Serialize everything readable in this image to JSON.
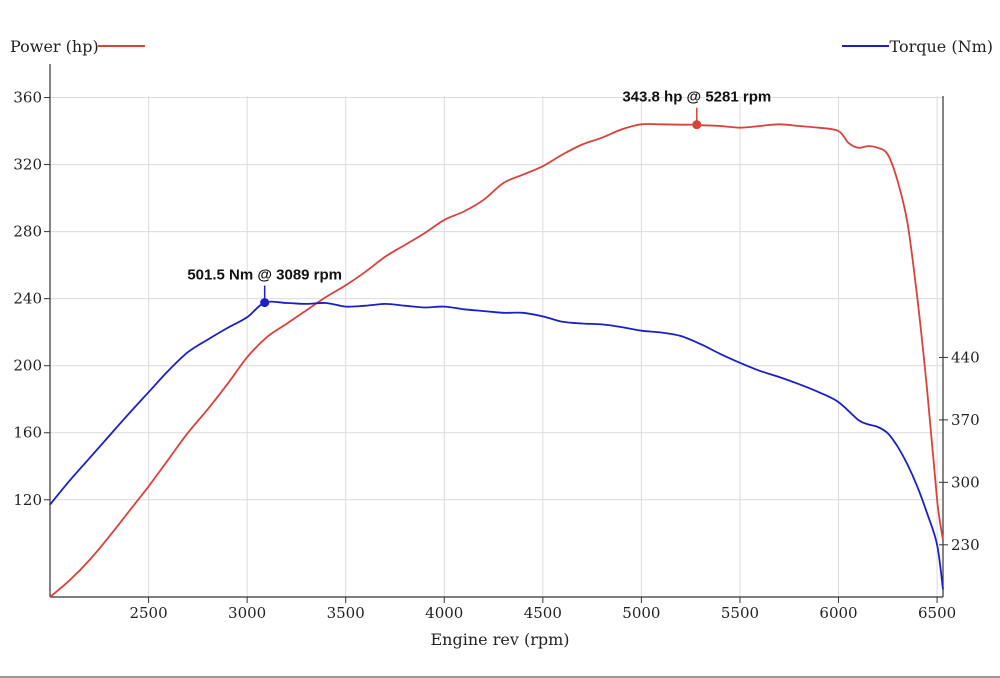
{
  "chart_data": {
    "type": "line",
    "title": "",
    "xlabel": "Engine rev (rpm)",
    "xlim": [
      2000,
      6530
    ],
    "x_ticks": [
      2500,
      3000,
      3500,
      4000,
      4500,
      5000,
      5500,
      6000,
      6500
    ],
    "grid": true,
    "legend": [
      {
        "name": "Power (hp)",
        "color": "#d9413a",
        "position": "top-left"
      },
      {
        "name": "Torque (Nm)",
        "color": "#1a1fc7",
        "position": "top-right"
      }
    ],
    "y_left": {
      "label": "Power (hp)",
      "ylim": [
        62,
        380
      ],
      "ticks": [
        120,
        160,
        200,
        240,
        280,
        320,
        360
      ]
    },
    "y_right": {
      "label": "Torque (Nm)",
      "ylim": [
        171.5,
        768.9
      ],
      "ticks": [
        230,
        300,
        370,
        440
      ]
    },
    "series": [
      {
        "name": "Power (hp)",
        "axis": "left",
        "color": "#d9413a",
        "x": [
          2000,
          2100,
          2200,
          2300,
          2400,
          2500,
          2600,
          2700,
          2800,
          2900,
          3000,
          3100,
          3200,
          3300,
          3400,
          3500,
          3600,
          3700,
          3800,
          3900,
          4000,
          4100,
          4200,
          4300,
          4400,
          4500,
          4600,
          4700,
          4800,
          4900,
          5000,
          5100,
          5200,
          5281,
          5300,
          5400,
          5500,
          5600,
          5700,
          5800,
          5900,
          6000,
          6050,
          6100,
          6150,
          6200,
          6250,
          6300,
          6350,
          6400,
          6450,
          6500,
          6530
        ],
        "values": [
          62,
          72,
          84,
          98,
          113,
          128,
          144,
          160,
          174,
          189,
          205,
          217,
          225,
          233,
          241,
          248,
          256,
          265,
          272,
          279,
          287,
          292,
          299,
          309,
          314,
          319,
          326,
          332,
          336,
          341,
          344,
          344,
          343.8,
          343.8,
          343.5,
          343,
          342,
          343,
          344,
          343,
          342,
          340,
          333,
          330,
          331,
          330,
          326,
          310,
          285,
          240,
          185,
          120,
          96
        ]
      },
      {
        "name": "Torque (Nm)",
        "axis": "right",
        "color": "#1a1fc7",
        "x": [
          2000,
          2100,
          2200,
          2300,
          2400,
          2500,
          2600,
          2700,
          2800,
          2900,
          3000,
          3089,
          3200,
          3300,
          3400,
          3500,
          3600,
          3700,
          3800,
          3900,
          4000,
          4100,
          4200,
          4300,
          4400,
          4500,
          4600,
          4700,
          4800,
          4900,
          5000,
          5100,
          5200,
          5300,
          5400,
          5500,
          5600,
          5700,
          5800,
          5900,
          6000,
          6100,
          6150,
          6200,
          6250,
          6300,
          6350,
          6400,
          6450,
          6500,
          6530
        ],
        "values": [
          275,
          302,
          327,
          352,
          377,
          401,
          425,
          446,
          460,
          473,
          485,
          501.5,
          501,
          500,
          501,
          497,
          498,
          500,
          498,
          496,
          497,
          494,
          492,
          490,
          490,
          486,
          480,
          478,
          477,
          474,
          470,
          468,
          464,
          455,
          444,
          434,
          425,
          418,
          410,
          401,
          390,
          370,
          365,
          362,
          355,
          340,
          320,
          295,
          265,
          230,
          180
        ]
      }
    ],
    "annotations": [
      {
        "text": "343.8 hp @ 5281 rpm",
        "series": "Power (hp)",
        "x": 5281,
        "y": 343.8
      },
      {
        "text": "501.5 Nm @ 3089 rpm",
        "series": "Torque (Nm)",
        "x": 3089,
        "y": 501.5
      }
    ]
  }
}
